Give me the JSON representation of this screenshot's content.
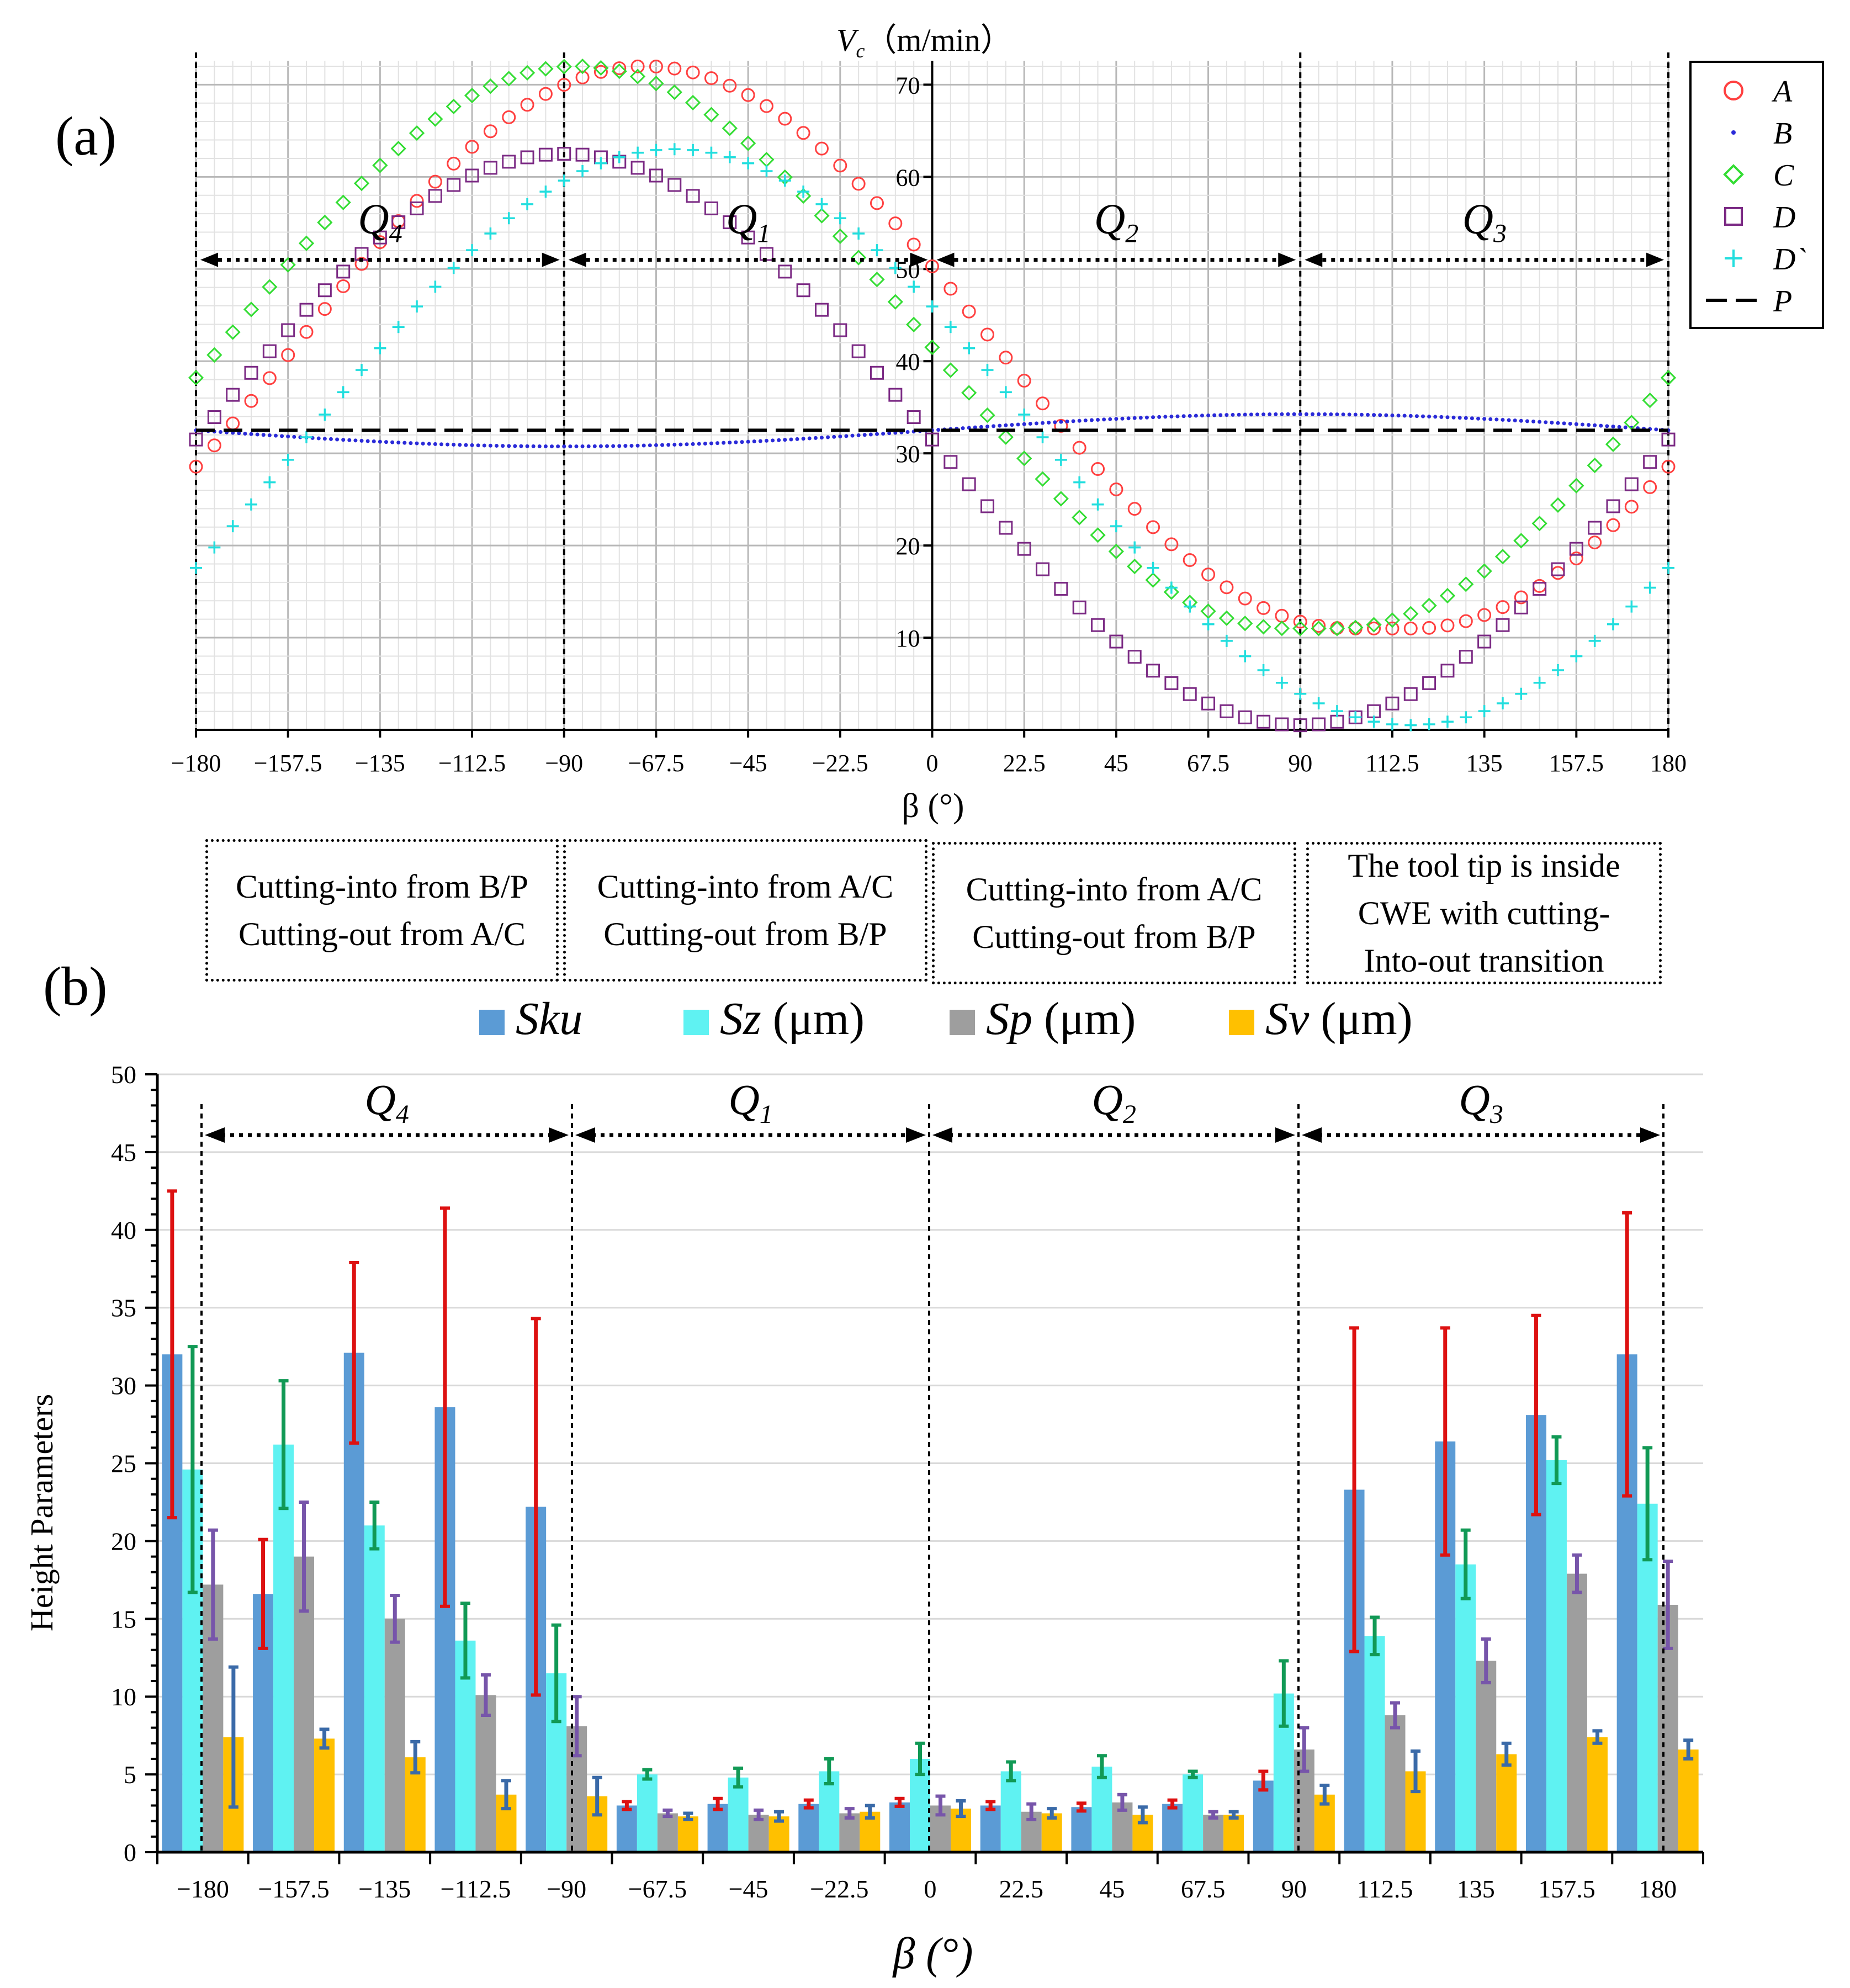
{
  "panel_a_label": "(a)",
  "panel_b_label": "(b)",
  "chart_data": [
    {
      "type": "scatter",
      "ylabel": "Vc（m/min）",
      "ylabel_base": "V",
      "ylabel_sub": "c",
      "ylabel_unit": "（m/min）",
      "xlabel": "β (°)",
      "xlim": [
        -180,
        180
      ],
      "ylim": [
        0,
        72
      ],
      "x_ticks": [
        "−180",
        "−157.5",
        "−135",
        "−112.5",
        "−90",
        "−67.5",
        "−45",
        "−22.5",
        "0",
        "22.5",
        "45",
        "67.5",
        "90",
        "112.5",
        "135",
        "157.5",
        "180"
      ],
      "y_ticks": [
        "10",
        "20",
        "30",
        "40",
        "50",
        "60",
        "70"
      ],
      "grid": true,
      "legend_position": "right-top",
      "quadrants": [
        "Q4",
        "Q1",
        "Q2",
        "Q3"
      ],
      "series": [
        {
          "name": "A",
          "marker": "circle",
          "color": "#ff4040",
          "center": -70,
          "min": 11,
          "max": 72,
          "min_halfwidth": 8
        },
        {
          "name": "B",
          "marker": "dot",
          "color": "#2a2ad8",
          "center": -90,
          "min": 30.8,
          "max": 34.2,
          "min_halfwidth": 0
        },
        {
          "name": "C",
          "marker": "diamond",
          "color": "#33dd33",
          "center": -87,
          "min": 11,
          "max": 72,
          "min_halfwidth": 6
        },
        {
          "name": "D",
          "marker": "square",
          "color": "#7b2a84",
          "center": -90,
          "min": 0.5,
          "max": 62.5,
          "min_halfwidth": 0
        },
        {
          "name": "D`",
          "marker": "plus",
          "color": "#22dede",
          "center": -63,
          "min": 0.5,
          "max": 63,
          "min_halfwidth": 0
        },
        {
          "name": "P",
          "marker": "dash-line",
          "color": "#000000",
          "value": 32.5
        }
      ]
    },
    {
      "type": "bar",
      "ylabel": "Height Parameters",
      "xlabel": "β (°)",
      "ylim": [
        0,
        50
      ],
      "y_ticks": [
        "0",
        "5",
        "10",
        "15",
        "20",
        "25",
        "30",
        "35",
        "40",
        "45",
        "50"
      ],
      "categories": [
        "−180",
        "−157.5",
        "−135",
        "−112.5",
        "−90",
        "−67.5",
        "−45",
        "−22.5",
        "0",
        "22.5",
        "45",
        "67.5",
        "90",
        "112.5",
        "135",
        "157.5",
        "180"
      ],
      "legend_position": "top",
      "quadrants": [
        "Q4",
        "Q1",
        "Q2",
        "Q3"
      ],
      "series": [
        {
          "name": "Sku",
          "unit": "",
          "color": "#5b9bd5",
          "err_color": "#dd1111",
          "values": [
            32.0,
            16.6,
            32.1,
            28.6,
            22.2,
            3.0,
            3.1,
            3.1,
            3.2,
            3.0,
            2.9,
            3.1,
            4.6,
            23.3,
            26.4,
            28.1,
            32.0
          ],
          "errors": [
            10.5,
            3.5,
            5.8,
            12.8,
            12.1,
            0.25,
            0.35,
            0.25,
            0.25,
            0.25,
            0.25,
            0.25,
            0.6,
            10.4,
            7.3,
            6.4,
            9.1
          ]
        },
        {
          "name": "Sz",
          "unit": "(μm)",
          "color": "#5ff2f2",
          "err_color": "#119955",
          "values": [
            24.6,
            26.2,
            21.0,
            13.6,
            11.5,
            5.0,
            4.8,
            5.2,
            6.0,
            5.2,
            5.5,
            5.0,
            10.2,
            13.9,
            18.5,
            25.2,
            22.4
          ],
          "errors": [
            7.9,
            4.1,
            1.5,
            2.4,
            3.1,
            0.3,
            0.6,
            0.8,
            1.0,
            0.6,
            0.7,
            0.2,
            2.1,
            1.2,
            2.2,
            1.5,
            3.6
          ]
        },
        {
          "name": "Sp",
          "unit": "(μm)",
          "color": "#9e9e9e",
          "err_color": "#7755aa",
          "values": [
            17.2,
            19.0,
            15.0,
            10.1,
            8.1,
            2.5,
            2.4,
            2.5,
            3.0,
            2.6,
            3.2,
            2.4,
            6.6,
            8.8,
            12.3,
            17.9,
            15.9
          ],
          "errors": [
            3.5,
            3.5,
            1.5,
            1.3,
            1.9,
            0.2,
            0.3,
            0.3,
            0.6,
            0.5,
            0.5,
            0.2,
            1.4,
            0.8,
            1.4,
            1.2,
            2.8
          ]
        },
        {
          "name": "Sv",
          "unit": "(μm)",
          "color": "#ffc000",
          "err_color": "#3a6aa8",
          "values": [
            7.4,
            7.3,
            6.1,
            3.7,
            3.6,
            2.3,
            2.3,
            2.6,
            2.8,
            2.5,
            2.4,
            2.4,
            3.7,
            5.2,
            6.3,
            7.4,
            6.6
          ],
          "errors": [
            4.5,
            0.6,
            1.0,
            0.9,
            1.2,
            0.2,
            0.3,
            0.4,
            0.5,
            0.3,
            0.5,
            0.2,
            0.6,
            1.3,
            0.7,
            0.4,
            0.6
          ]
        }
      ]
    }
  ],
  "notes": [
    {
      "line1": "Cutting-into from B/P",
      "line2": "Cutting-out from A/C"
    },
    {
      "line1": "Cutting-into from A/C",
      "line2": "Cutting-out from B/P"
    },
    {
      "line1": "Cutting-into from A/C",
      "line2": "Cutting-out from B/P"
    },
    {
      "line1": "The tool tip is inside",
      "line2": "CWE with cutting-",
      "line3": "Into-out transition"
    }
  ]
}
